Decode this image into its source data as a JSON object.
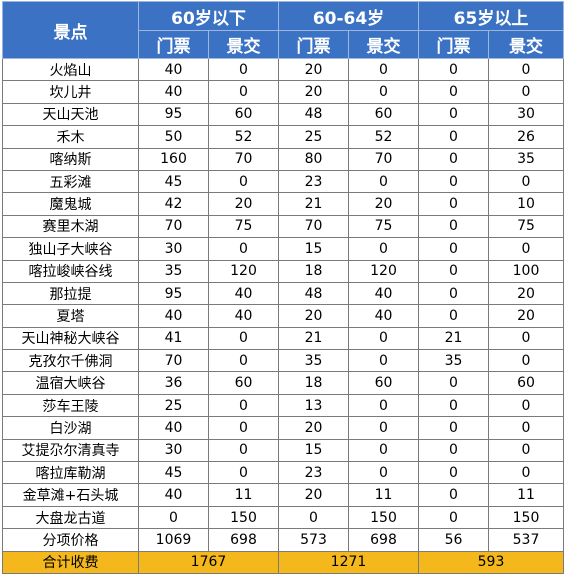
{
  "header": {
    "spot_label": "景点",
    "groups": [
      "60岁以下",
      "60-64岁",
      "65岁以上"
    ],
    "sub_labels": [
      "门票",
      "景交"
    ]
  },
  "rows": [
    {
      "name": "火焰山",
      "values": [
        "40",
        "0",
        "20",
        "0",
        "0",
        "0"
      ]
    },
    {
      "name": "坎儿井",
      "values": [
        "40",
        "0",
        "20",
        "0",
        "0",
        "0"
      ]
    },
    {
      "name": "天山天池",
      "values": [
        "95",
        "60",
        "48",
        "60",
        "0",
        "30"
      ]
    },
    {
      "name": "禾木",
      "values": [
        "50",
        "52",
        "25",
        "52",
        "0",
        "26"
      ]
    },
    {
      "name": "喀纳斯",
      "values": [
        "160",
        "70",
        "80",
        "70",
        "0",
        "35"
      ]
    },
    {
      "name": "五彩滩",
      "values": [
        "45",
        "0",
        "23",
        "0",
        "0",
        "0"
      ]
    },
    {
      "name": "魔鬼城",
      "values": [
        "42",
        "20",
        "21",
        "20",
        "0",
        "10"
      ]
    },
    {
      "name": "赛里木湖",
      "values": [
        "70",
        "75",
        "70",
        "75",
        "0",
        "75"
      ]
    },
    {
      "name": "独山子大峡谷",
      "values": [
        "30",
        "0",
        "15",
        "0",
        "0",
        "0"
      ]
    },
    {
      "name": "喀拉峻峡谷线",
      "values": [
        "35",
        "120",
        "18",
        "120",
        "0",
        "100"
      ]
    },
    {
      "name": "那拉提",
      "values": [
        "95",
        "40",
        "48",
        "40",
        "0",
        "20"
      ]
    },
    {
      "name": "夏塔",
      "values": [
        "40",
        "40",
        "20",
        "40",
        "0",
        "20"
      ]
    },
    {
      "name": "天山神秘大峡谷",
      "values": [
        "41",
        "0",
        "21",
        "0",
        "21",
        "0"
      ]
    },
    {
      "name": "克孜尔千佛洞",
      "values": [
        "70",
        "0",
        "35",
        "0",
        "35",
        "0"
      ]
    },
    {
      "name": "温宿大峡谷",
      "values": [
        "36",
        "60",
        "18",
        "60",
        "0",
        "60"
      ]
    },
    {
      "name": "莎车王陵",
      "values": [
        "25",
        "0",
        "13",
        "0",
        "0",
        "0"
      ]
    },
    {
      "name": "白沙湖",
      "values": [
        "40",
        "0",
        "20",
        "0",
        "0",
        "0"
      ]
    },
    {
      "name": "艾提尕尔清真寺",
      "values": [
        "30",
        "0",
        "15",
        "0",
        "0",
        "0"
      ]
    },
    {
      "name": "喀拉库勒湖",
      "values": [
        "45",
        "0",
        "23",
        "0",
        "0",
        "0"
      ]
    },
    {
      "name": "金草滩+石头城",
      "values": [
        "40",
        "11",
        "20",
        "11",
        "0",
        "11"
      ]
    },
    {
      "name": "大盘龙古道",
      "values": [
        "0",
        "150",
        "0",
        "150",
        "0",
        "150"
      ]
    },
    {
      "name": "分项价格",
      "values": [
        "1069",
        "698",
        "573",
        "698",
        "56",
        "537"
      ]
    }
  ],
  "total": {
    "label": "合计收费",
    "values": [
      "1767",
      "1271",
      "593"
    ]
  },
  "colors": {
    "header_bg": "#3b72c4",
    "total_bg": "#f4b81c"
  }
}
